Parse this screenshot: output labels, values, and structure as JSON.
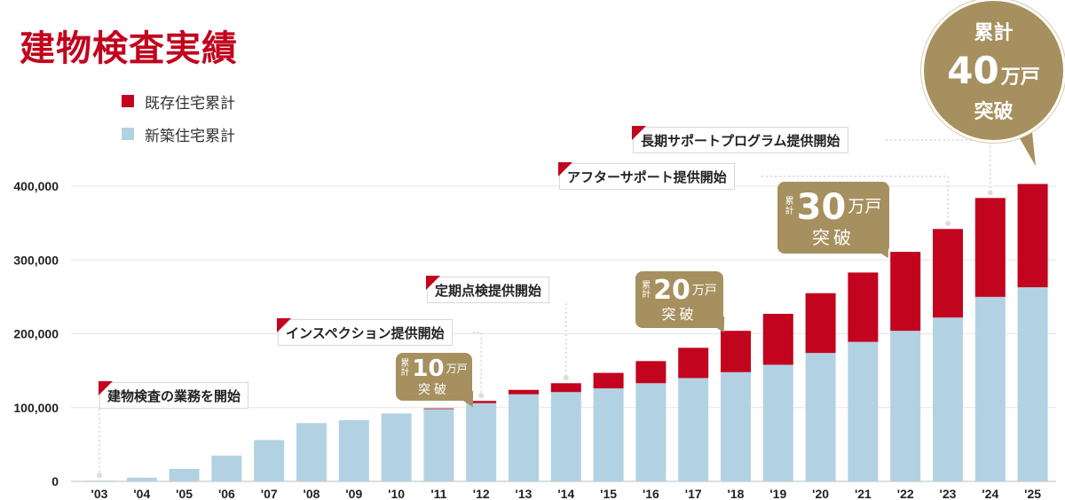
{
  "title": "建物検査実績",
  "legend": [
    {
      "label": "既存住宅累計",
      "color": "#c2041e"
    },
    {
      "label": "新築住宅累計",
      "color": "#b2d2e3"
    }
  ],
  "milestones": [
    {
      "text": "建物検査の業務を開始"
    },
    {
      "text": "インスペクション提供開始"
    },
    {
      "text": "定期点検提供開始"
    },
    {
      "text": "アフターサポート提供開始"
    },
    {
      "text": "長期サポートプログラム提供開始"
    }
  ],
  "callouts": [
    {
      "prefix_top": "累",
      "prefix_bottom": "計",
      "number": "10",
      "unit": "万戸",
      "suffix": "突破"
    },
    {
      "prefix_top": "累",
      "prefix_bottom": "計",
      "number": "20",
      "unit": "万戸",
      "suffix": "突破"
    },
    {
      "prefix_top": "累",
      "prefix_bottom": "計",
      "number": "30",
      "unit": "万戸",
      "suffix": "突破"
    }
  ],
  "big_callout": {
    "line1": "累計",
    "number": "40",
    "unit": "万戸",
    "suffix": "突破"
  },
  "chart_data": {
    "type": "bar",
    "stacked": true,
    "categories": [
      "'03",
      "'04",
      "'05",
      "'06",
      "'07",
      "'08",
      "'09",
      "'10",
      "'11",
      "'12",
      "'13",
      "'14",
      "'15",
      "'16",
      "'17",
      "'18",
      "'19",
      "'20",
      "'21",
      "'22",
      "'23",
      "'24",
      "'25"
    ],
    "series": [
      {
        "name": "新築住宅累計",
        "color": "#b2d2e3",
        "values": [
          1000,
          5000,
          17000,
          35000,
          56000,
          79000,
          83000,
          92000,
          98000,
          106000,
          118000,
          121000,
          126000,
          133000,
          140000,
          148000,
          158000,
          174000,
          189000,
          204000,
          222000,
          250000,
          263000
        ]
      },
      {
        "name": "既存住宅累計",
        "color": "#c2041e",
        "values": [
          0,
          0,
          0,
          0,
          0,
          0,
          0,
          0,
          1000,
          3000,
          6000,
          12000,
          21000,
          30000,
          41000,
          56000,
          69000,
          81000,
          94000,
          107000,
          120000,
          134000,
          140000
        ]
      }
    ],
    "y_ticks": [
      "0",
      "100,000",
      "200,000",
      "300,000",
      "400,000"
    ],
    "ylim": [
      0,
      420000
    ],
    "grid": true
  }
}
